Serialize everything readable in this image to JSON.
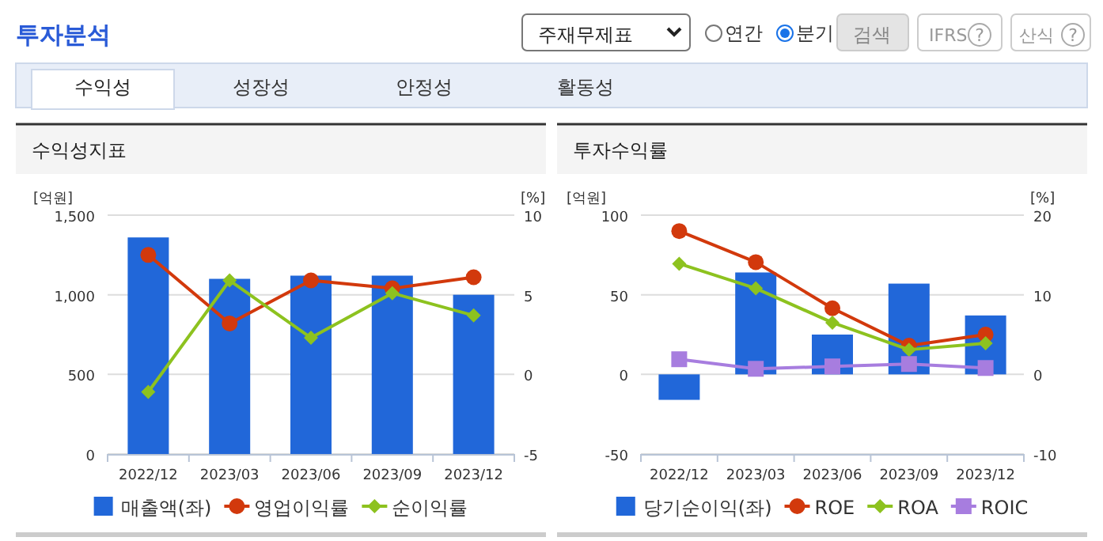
{
  "chart_data": [
    {
      "type": "other",
      "annotations": [
        "투자분석",
        "주재무제표",
        "연간",
        "분기",
        "검색",
        "IFRS",
        "?",
        "산식",
        "?",
        "수익성",
        "성장성",
        "안정성",
        "활동성"
      ]
    },
    {
      "type": "bar",
      "title": "수익성지표",
      "ylabel": "[억원]",
      "y2label": "[%]",
      "categories": [
        "2022/12",
        "2023/03",
        "2023/06",
        "2023/09",
        "2023/12"
      ],
      "ylim": [
        0,
        1500
      ],
      "yticks": [
        0,
        500,
        {
          "value": 1000,
          "label": "1,000"
        },
        {
          "value": 1500,
          "label": "1,500"
        }
      ],
      "y2lim": [
        -5,
        10
      ],
      "y2ticks": [
        -5,
        0,
        5,
        10
      ],
      "grid": "y",
      "legend": "bottom",
      "series": [
        {
          "name": "매출액(좌)",
          "type": "bar",
          "color": "#2167d9",
          "values": [
            1360,
            1100,
            1120,
            1120,
            1000
          ]
        },
        {
          "name": "영업이익률",
          "type": "line",
          "axis": "y2",
          "marker": "circle",
          "color": "#d2390c",
          "values": [
            7.5,
            3.2,
            5.9,
            5.4,
            6.1
          ]
        },
        {
          "name": "순이익률",
          "type": "line",
          "axis": "y2",
          "marker": "diamond",
          "color": "#8dc21f",
          "values": [
            -1.1,
            5.9,
            2.3,
            5.1,
            3.7
          ]
        }
      ]
    },
    {
      "type": "bar",
      "title": "투자수익률",
      "ylabel": "[억원]",
      "y2label": "[%]",
      "categories": [
        "2022/12",
        "2023/03",
        "2023/06",
        "2023/09",
        "2023/12"
      ],
      "ylim": [
        -50,
        100
      ],
      "yticks": [
        -50,
        0,
        50,
        100
      ],
      "y2lim": [
        -10,
        20
      ],
      "y2ticks": [
        -10,
        0,
        10,
        20
      ],
      "grid": "y",
      "legend": "bottom",
      "series": [
        {
          "name": "당기순이익(좌)",
          "type": "bar",
          "color": "#2167d9",
          "values": [
            -16,
            64,
            25,
            57,
            37
          ]
        },
        {
          "name": "ROE",
          "type": "line",
          "axis": "y2",
          "marker": "circle",
          "color": "#d2390c",
          "values": [
            18,
            14.1,
            8.3,
            3.6,
            5.0
          ]
        },
        {
          "name": "ROA",
          "type": "line",
          "axis": "y2",
          "marker": "diamond",
          "color": "#8dc21f",
          "values": [
            13.9,
            10.8,
            6.5,
            3.1,
            3.9
          ]
        },
        {
          "name": "ROIC",
          "type": "line",
          "axis": "y2",
          "marker": "square",
          "color": "#a77ddf",
          "values": [
            1.9,
            0.7,
            1.0,
            1.3,
            0.8
          ]
        }
      ]
    }
  ]
}
